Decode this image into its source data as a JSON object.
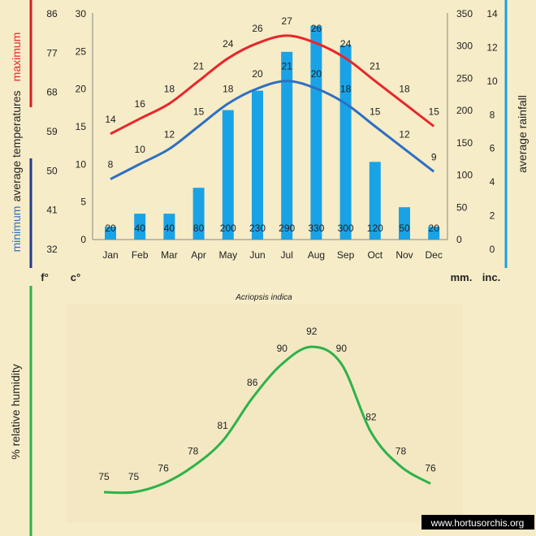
{
  "colors": {
    "background": "#f6ecc8",
    "panel": "#f3e8c2",
    "max_line": "#e8262b",
    "min_line": "#2e6fc2",
    "rain_bar": "#19a3e6",
    "humidity_line": "#2db24a",
    "left_rule_top": "#d6201f",
    "left_rule_bottom": "#233a8c",
    "right_rule": "#1aa0e0"
  },
  "labels": {
    "maximum": "maximum",
    "minimum": "minimum",
    "average_temperatures": "average  temperatures",
    "average_rainfall": "average rainfall",
    "fahrenheit": "f°",
    "celsius": "c°",
    "mm": "mm.",
    "inches": "inc.",
    "humidity_axis": "%  relative  humidity",
    "species": "Acriopsis indica",
    "watermark": "www.hortusorchis.org"
  },
  "chart_data": [
    {
      "type": "bar+line",
      "categories": [
        "Jan",
        "Feb",
        "Mar",
        "Apr",
        "May",
        "Jun",
        "Jul",
        "Aug",
        "Sep",
        "Oct",
        "Nov",
        "Dec"
      ],
      "series": [
        {
          "name": "maximum",
          "type": "line",
          "axis": "celsius",
          "values": [
            14,
            16,
            18,
            21,
            24,
            26,
            27,
            26,
            24,
            21,
            18,
            15
          ]
        },
        {
          "name": "minimum",
          "type": "line",
          "axis": "celsius",
          "values": [
            8,
            10,
            12,
            15,
            18,
            20,
            21,
            20,
            18,
            15,
            12,
            9
          ]
        },
        {
          "name": "average rainfall",
          "type": "bar",
          "axis": "mm",
          "values": [
            20,
            40,
            40,
            80,
            200,
            230,
            290,
            330,
            300,
            120,
            50,
            20
          ]
        }
      ],
      "axes": {
        "fahrenheit": {
          "ticks": [
            "86",
            "77",
            "68",
            "59",
            "50",
            "41",
            "32"
          ]
        },
        "celsius": {
          "ylim": [
            0,
            30
          ],
          "ticks": [
            "30",
            "25",
            "20",
            "15",
            "10",
            "5",
            "0"
          ]
        },
        "mm": {
          "ylim": [
            0,
            350
          ],
          "ticks": [
            "350",
            "300",
            "250",
            "200",
            "150",
            "100",
            "50",
            "0"
          ]
        },
        "inches": {
          "ylim": [
            0,
            14
          ],
          "ticks": [
            "14",
            "12",
            "10",
            "8",
            "6",
            "4",
            "2",
            "0"
          ]
        }
      },
      "grid": false
    },
    {
      "type": "line",
      "title": "Acriopsis indica",
      "categories": [
        "Jan",
        "Feb",
        "Mar",
        "Apr",
        "May",
        "Jun",
        "Jul",
        "Aug",
        "Sep",
        "Oct",
        "Nov",
        "Dec"
      ],
      "series": [
        {
          "name": "% relative humidity",
          "values": [
            75,
            75,
            76,
            78,
            81,
            86,
            90,
            92,
            90,
            82,
            78,
            76
          ]
        }
      ],
      "ylabel": "%  relative  humidity",
      "grid": false
    }
  ]
}
